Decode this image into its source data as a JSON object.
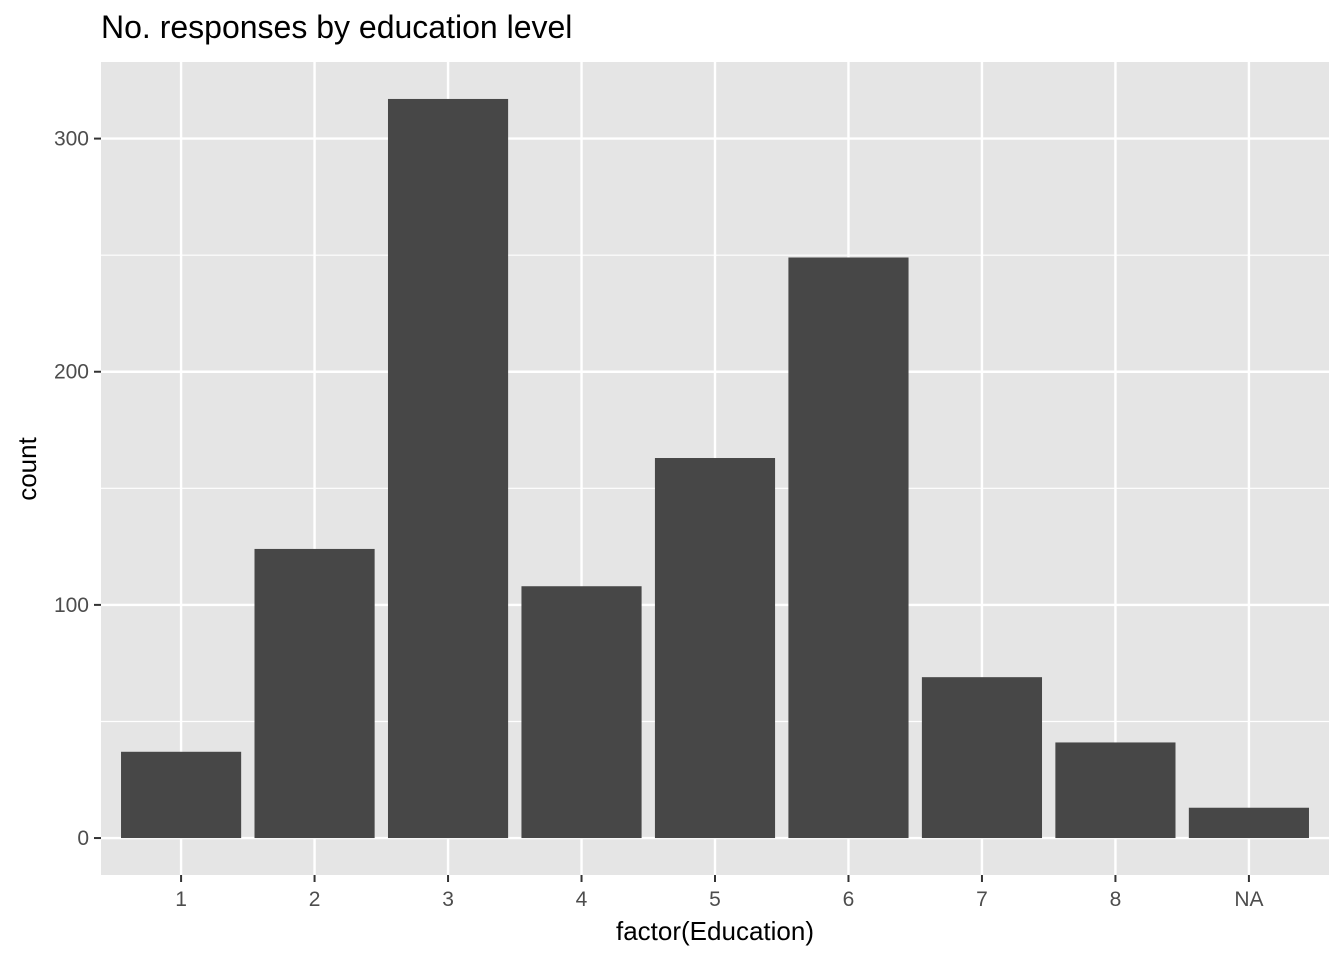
{
  "chart_data": {
    "type": "bar",
    "title": "No. responses by education level",
    "xlabel": "factor(Education)",
    "ylabel": "count",
    "categories": [
      "1",
      "2",
      "3",
      "4",
      "5",
      "6",
      "7",
      "8",
      "NA"
    ],
    "values": [
      37,
      124,
      317,
      108,
      163,
      249,
      69,
      41,
      13
    ],
    "ylim": [
      -15.85,
      332.85
    ],
    "yticks": [
      0,
      100,
      200,
      300
    ],
    "grid": true,
    "legend": "none",
    "colors": {
      "bar": "#474747",
      "panel": "#e5e5e5",
      "grid": "#ffffff",
      "tick": "#333333"
    }
  }
}
